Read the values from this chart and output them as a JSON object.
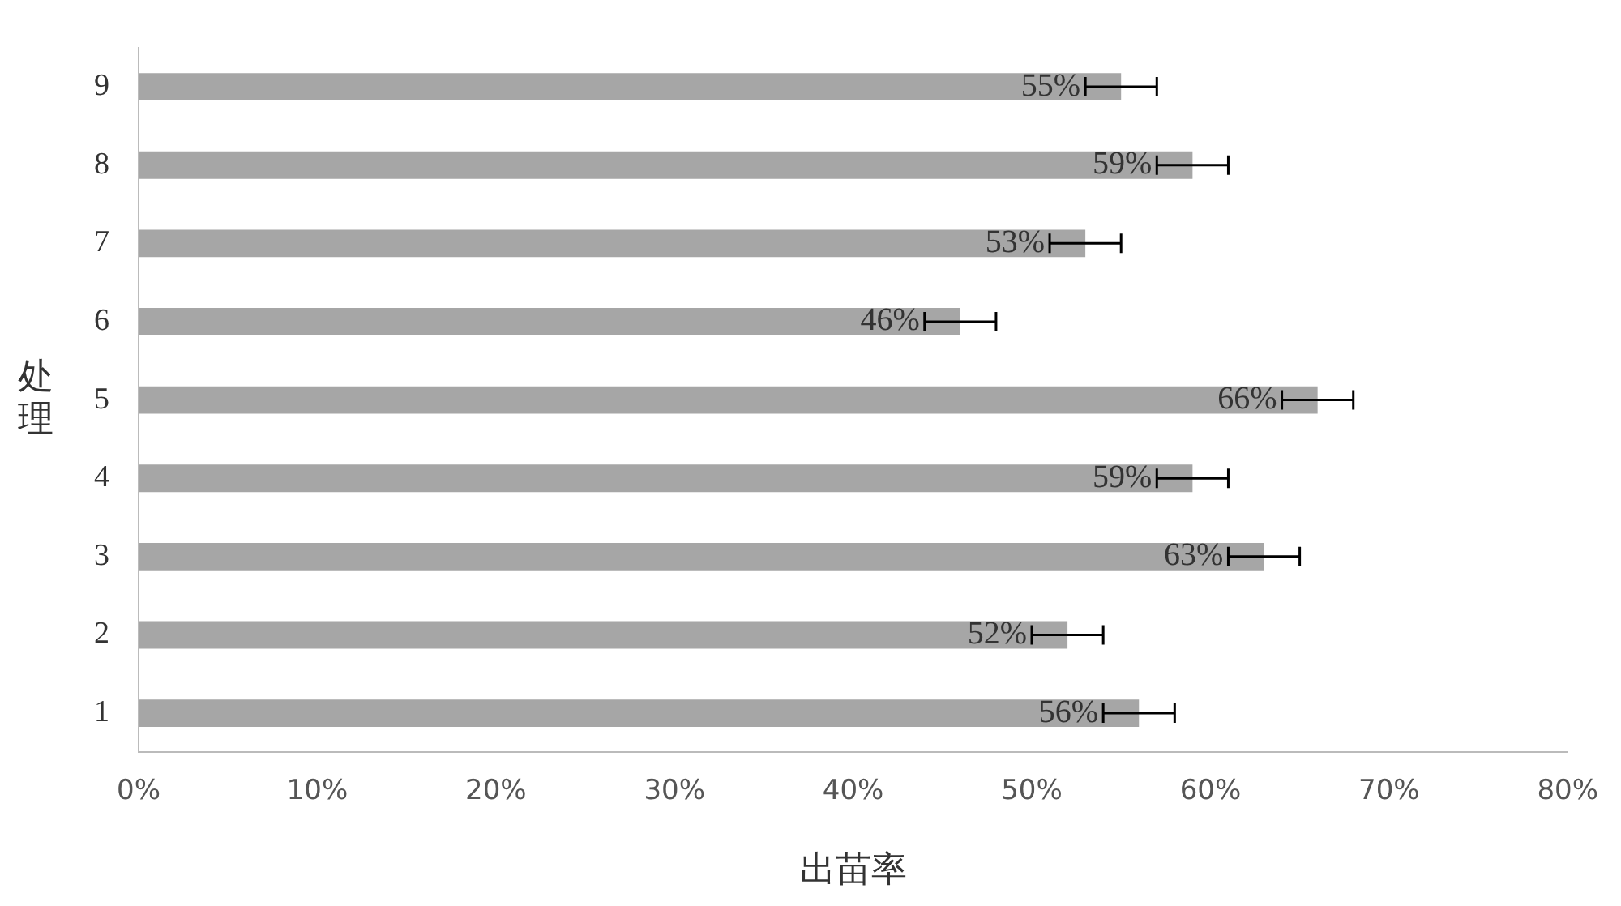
{
  "chart_data": {
    "type": "bar",
    "orientation": "horizontal",
    "xlabel": "出苗率",
    "ylabel": "处理",
    "categories": [
      "9",
      "8",
      "7",
      "6",
      "5",
      "4",
      "3",
      "2",
      "1"
    ],
    "values": [
      55,
      59,
      53,
      46,
      66,
      59,
      63,
      52,
      56
    ],
    "errors": [
      2,
      2,
      2,
      2,
      2,
      2,
      2,
      2,
      2
    ],
    "value_labels": [
      "55%",
      "59%",
      "53%",
      "46%",
      "66%",
      "59%",
      "63%",
      "52%",
      "56%"
    ],
    "color": "#a6a6a6",
    "xlim": [
      0,
      80
    ],
    "xticks": [
      {
        "value": 0,
        "label": "0%"
      },
      {
        "value": 10,
        "label": "10%"
      },
      {
        "value": 20,
        "label": "20%"
      },
      {
        "value": 30,
        "label": "30%"
      },
      {
        "value": 40,
        "label": "40%"
      },
      {
        "value": 50,
        "label": "50%"
      },
      {
        "value": 60,
        "label": "60%"
      },
      {
        "value": 70,
        "label": "70%"
      },
      {
        "value": 80,
        "label": "80%"
      }
    ],
    "grid": false,
    "legend": false
  }
}
